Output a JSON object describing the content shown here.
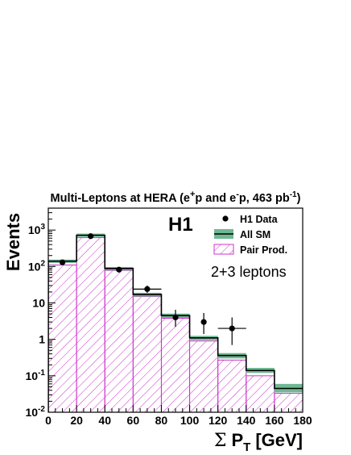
{
  "chart_data": {
    "type": "bar",
    "title": {
      "prefix": "Multi-Leptons at HERA (e",
      "sup1": "+",
      "mid": "p and e",
      "sup2": "-",
      "mid2": "p, 463 pb",
      "sup3": "-1",
      "suffix": ")"
    },
    "experiment_label": "H1",
    "annotation": "2+3 leptons",
    "ylabel": "Events",
    "xlabel": {
      "sigma": "Σ",
      "p": "P",
      "sub": "T",
      "unit": "[GeV]"
    },
    "xlim": [
      0,
      180
    ],
    "ylim": [
      0.01,
      4000
    ],
    "yscale": "log",
    "x_ticks": [
      "0",
      "20",
      "40",
      "60",
      "80",
      "100",
      "120",
      "140",
      "160",
      "180"
    ],
    "y_ticks": [
      {
        "value": 0.01,
        "base": "10",
        "exp": "-2"
      },
      {
        "value": 0.1,
        "base": "10",
        "exp": "-1"
      },
      {
        "value": 1,
        "base": "1",
        "exp": ""
      },
      {
        "value": 10,
        "base": "10",
        "exp": ""
      },
      {
        "value": 100,
        "base": "10",
        "exp": "2"
      },
      {
        "value": 1000,
        "base": "10",
        "exp": "3"
      }
    ],
    "bin_edges": [
      0,
      20,
      40,
      60,
      80,
      100,
      120,
      140,
      160,
      180
    ],
    "series": [
      {
        "name": "H1 Data",
        "kind": "points",
        "x": [
          10,
          30,
          50,
          70,
          90,
          110,
          130
        ],
        "y": [
          130,
          680,
          82,
          24,
          4,
          3,
          2
        ],
        "yerr_low": [
          12,
          26,
          9,
          5,
          1.8,
          1.6,
          1.3
        ],
        "yerr_high": [
          12,
          26,
          9,
          6,
          2.5,
          2.3,
          2.0
        ],
        "xerr": [
          0,
          0,
          0,
          10,
          0,
          0,
          10
        ]
      },
      {
        "name": "All SM",
        "kind": "step_band",
        "values": [
          140,
          720,
          88,
          17,
          4.5,
          1.1,
          0.36,
          0.14,
          0.045
        ],
        "band_low": [
          126,
          650,
          78,
          15,
          3.9,
          0.95,
          0.3,
          0.12,
          0.035
        ],
        "band_high": [
          155,
          800,
          97,
          19,
          5.1,
          1.25,
          0.42,
          0.165,
          0.06
        ]
      },
      {
        "name": "Pair Prod.",
        "kind": "hatched",
        "values": [
          110,
          620,
          78,
          15,
          3.8,
          0.9,
          0.27,
          0.1,
          0.033
        ]
      }
    ],
    "legend": {
      "placement": "top-right",
      "entries": [
        {
          "label": "H1 Data",
          "symbol": "marker"
        },
        {
          "label": "All SM",
          "symbol": "band"
        },
        {
          "label": "Pair Prod.",
          "symbol": "hatch"
        }
      ]
    },
    "colors": {
      "band": "#6fb893",
      "hatch": "#cc33cc",
      "sm_line": "#000000"
    }
  }
}
